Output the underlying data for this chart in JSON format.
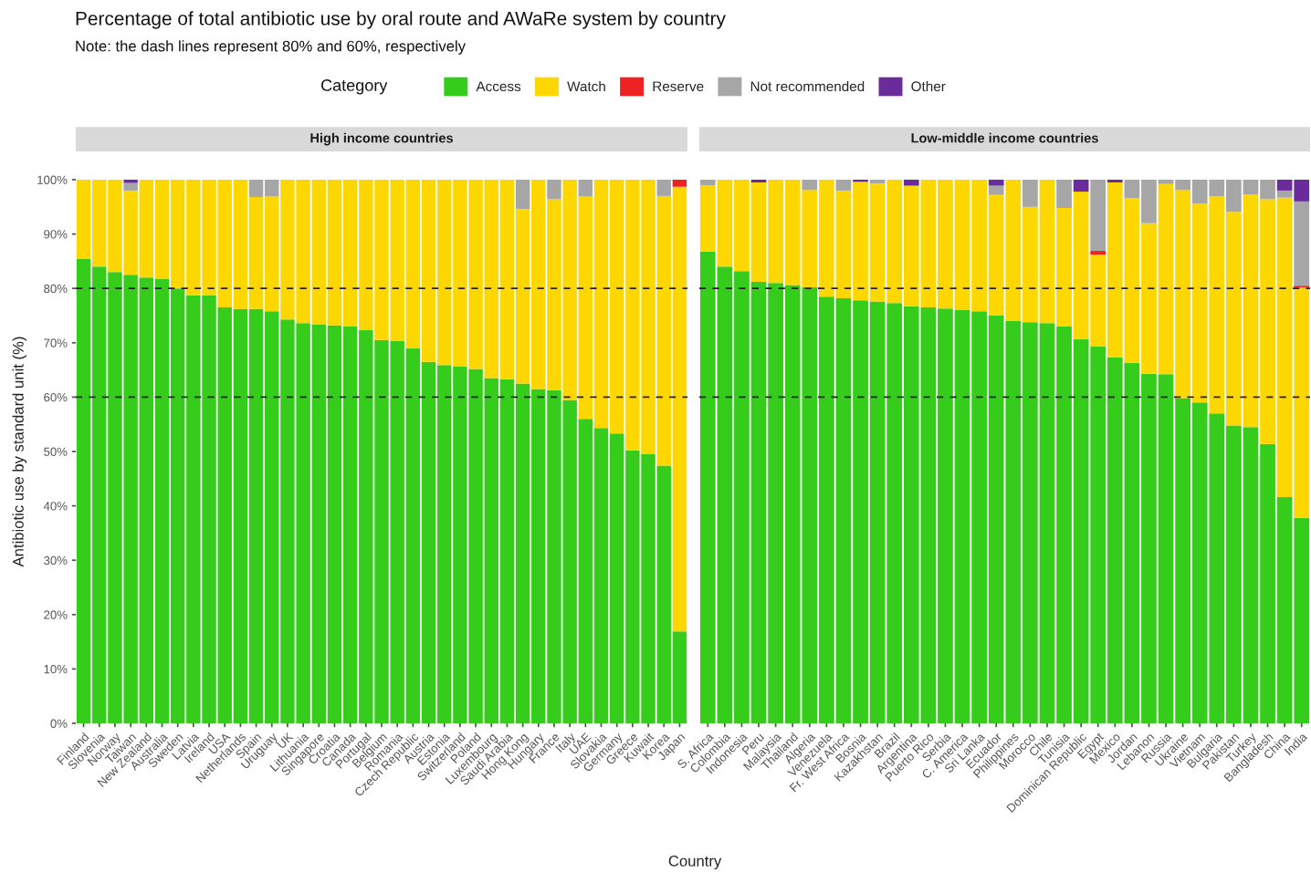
{
  "chart_data": [
    {
      "type": "bar",
      "stacked": true,
      "title": "High income countries",
      "annotations": [
        "Percentage of total antibiotic use by oral route and AWaRe system by country",
        "Note: the dash lines represent 80% and 60%, respectively"
      ],
      "xlabel": "Country",
      "ylabel": "Antibiotic use by standard unit (%)",
      "legend_title": "Category",
      "legend": "top",
      "categories": [
        "Finland",
        "Slovenia",
        "Norway",
        "Taiwan",
        "New Zealand",
        "Australia",
        "Sweden",
        "Latvia",
        "Ireland",
        "USA",
        "Netherlands",
        "Spain",
        "Uruguay",
        "UK",
        "Lithuania",
        "Singapore",
        "Croatia",
        "Canada",
        "Portugal",
        "Belgium",
        "Romania",
        "Czech Republic",
        "Austria",
        "Estonia",
        "Switzerland",
        "Poland",
        "Luxembourg",
        "Saudi Arabia",
        "Hong Kong",
        "Hungary",
        "France",
        "Italy",
        "UAE",
        "Slovakia",
        "Germany",
        "Greece",
        "Kuwait",
        "Korea",
        "Japan"
      ],
      "series": [
        {
          "name": "Access",
          "color": "#36cc1c",
          "values": [
            85.5,
            84,
            83,
            82.5,
            82,
            81.8,
            80,
            78.7,
            78.7,
            76.5,
            76.2,
            76.2,
            75.8,
            74.3,
            73.6,
            73.4,
            73.2,
            73,
            72.3,
            70.5,
            70.3,
            69,
            66.5,
            65.9,
            65.6,
            65.2,
            63.5,
            63.3,
            62.5,
            61.5,
            61.3,
            59.5,
            56,
            54.3,
            53.3,
            50.2,
            49.5,
            47.4,
            16.9
          ]
        },
        {
          "name": "Watch",
          "color": "#ffd700",
          "values": [
            14.5,
            16,
            17,
            15.5,
            18,
            18.2,
            20,
            21.3,
            21.3,
            23.5,
            23.8,
            20.6,
            21.1,
            25.7,
            26.4,
            26.6,
            26.8,
            27,
            27.7,
            29.5,
            29.7,
            31,
            33.5,
            34.1,
            34.4,
            34.8,
            36.5,
            36.7,
            32.1,
            38.5,
            35.1,
            40.5,
            40.9,
            45.7,
            46.7,
            49.8,
            50.5,
            49.6,
            81.8
          ]
        },
        {
          "name": "Reserve",
          "color": "#ee2222",
          "values": [
            0,
            0,
            0,
            0,
            0,
            0,
            0,
            0,
            0,
            0,
            0,
            0,
            0,
            0,
            0,
            0,
            0,
            0,
            0,
            0,
            0,
            0,
            0,
            0,
            0,
            0,
            0,
            0,
            0,
            0,
            0,
            0,
            0,
            0,
            0,
            0,
            0,
            0,
            1.3
          ]
        },
        {
          "name": "Not recommended",
          "color": "#a6a6a6",
          "values": [
            0,
            0,
            0,
            1.4,
            0,
            0,
            0,
            0,
            0,
            0,
            0,
            3.2,
            3.1,
            0,
            0,
            0,
            0,
            0,
            0,
            0,
            0,
            0,
            0,
            0,
            0,
            0,
            0,
            0,
            5.4,
            0,
            3.6,
            0,
            3.1,
            0,
            0,
            0,
            0,
            3.0,
            0
          ]
        },
        {
          "name": "Other",
          "color": "#6a2c9a",
          "values": [
            0,
            0,
            0,
            0.6,
            0,
            0,
            0,
            0,
            0,
            0,
            0,
            0,
            0,
            0,
            0,
            0,
            0,
            0,
            0,
            0,
            0,
            0,
            0,
            0,
            0,
            0,
            0,
            0,
            0,
            0,
            0,
            0,
            0,
            0,
            0,
            0,
            0,
            0,
            0
          ]
        }
      ],
      "ylim": [
        0,
        100
      ],
      "yticks": [
        {
          "value": 0,
          "label": "0%"
        },
        {
          "value": 10,
          "label": "10%"
        },
        {
          "value": 20,
          "label": "20%"
        },
        {
          "value": 30,
          "label": "30%"
        },
        {
          "value": 40,
          "label": "40%"
        },
        {
          "value": 50,
          "label": "50%"
        },
        {
          "value": 60,
          "label": "60%"
        },
        {
          "value": 70,
          "label": "70%"
        },
        {
          "value": 80,
          "label": "80%"
        },
        {
          "value": 90,
          "label": "90%"
        },
        {
          "value": 100,
          "label": "100%"
        }
      ],
      "ref_lines": [
        {
          "axis": "y",
          "value": 80,
          "color": "#222222",
          "line_style": "dashed"
        },
        {
          "axis": "y",
          "value": 60,
          "color": "#222222",
          "line_style": "dashed"
        }
      ]
    },
    {
      "type": "bar",
      "stacked": true,
      "title": "Low-middle income countries",
      "tick_labels": "x",
      "categories": [
        "S. Africa",
        "Colombia",
        "Indonesia",
        "Peru",
        "Malaysia",
        "Thailand",
        "Algeria",
        "Venezuela",
        "Fr. West Africa",
        "Bosnia",
        "Kazakhstan",
        "Brazil",
        "Argentina",
        "Puerto Rico",
        "Serbia",
        "C. America",
        "Sri Lanka",
        "Ecuador",
        "Philippines",
        "Morocco",
        "Chile",
        "Tunisia",
        "Dominican Republic",
        "Egypt",
        "Mexico",
        "Jordan",
        "Lebanon",
        "Russia",
        "Ukraine",
        "Vietnam",
        "Bulgaria",
        "Pakistan",
        "Turkey",
        "Bangladesh",
        "China",
        "India"
      ],
      "series": [
        {
          "color": "#36cc1c",
          "values": [
            86.8,
            84,
            83.2,
            81.2,
            81,
            80.6,
            80.2,
            78.5,
            78.2,
            77.8,
            77.6,
            77.3,
            76.7,
            76.5,
            76.3,
            76,
            75.8,
            75,
            74,
            73.8,
            73.6,
            73,
            70.7,
            69.3,
            67.3,
            66.3,
            64.3,
            64.2,
            59.8,
            59,
            57,
            54.8,
            54.5,
            51.4,
            41.6,
            37.8
          ]
        },
        {
          "color": "#ffd700",
          "values": [
            12.2,
            16,
            16.8,
            18.3,
            19,
            19.4,
            17.9,
            21.5,
            19.8,
            21.8,
            21.7,
            22.7,
            22.2,
            23.5,
            23.7,
            24,
            24.2,
            22.2,
            26,
            21.2,
            26.4,
            21.8,
            27.1,
            16.9,
            32.2,
            30.3,
            27.7,
            35,
            38.3,
            36.6,
            39.9,
            39.3,
            42.8,
            45,
            55.1,
            42.4
          ]
        },
        {
          "color": "#ee2222",
          "values": [
            0,
            0,
            0,
            0,
            0,
            0,
            0,
            0,
            0,
            0,
            0,
            0,
            0,
            0,
            0,
            0,
            0,
            0,
            0,
            0,
            0,
            0,
            0,
            0.7,
            0,
            0,
            0,
            0,
            0,
            0,
            0,
            0,
            0,
            0,
            0,
            0.3
          ]
        },
        {
          "color": "#a6a6a6",
          "values": [
            1.0,
            0,
            0,
            0,
            0,
            0,
            1.9,
            0,
            2.0,
            0,
            0.7,
            0,
            0,
            0,
            0,
            0,
            0,
            1.7,
            0,
            5.0,
            0,
            5.2,
            0,
            13.1,
            0,
            3.4,
            8.0,
            0.8,
            1.9,
            4.4,
            3.1,
            5.9,
            2.7,
            3.6,
            1.3,
            15.5
          ]
        },
        {
          "color": "#6a2c9a",
          "values": [
            0,
            0,
            0,
            0.5,
            0,
            0,
            0,
            0,
            0,
            0.4,
            0,
            0,
            1.1,
            0,
            0,
            0,
            0,
            1.1,
            0,
            0,
            0,
            0,
            2.2,
            0,
            0.5,
            0,
            0,
            0,
            0,
            0,
            0,
            0,
            0,
            0,
            2.0,
            4.0
          ]
        }
      ],
      "ylim": [
        0,
        100
      ],
      "ref_lines": [
        {
          "axis": "y",
          "value": 80,
          "color": "#222222",
          "line_style": "dashed"
        },
        {
          "axis": "y",
          "value": 60,
          "color": "#222222",
          "line_style": "dashed"
        }
      ]
    }
  ]
}
